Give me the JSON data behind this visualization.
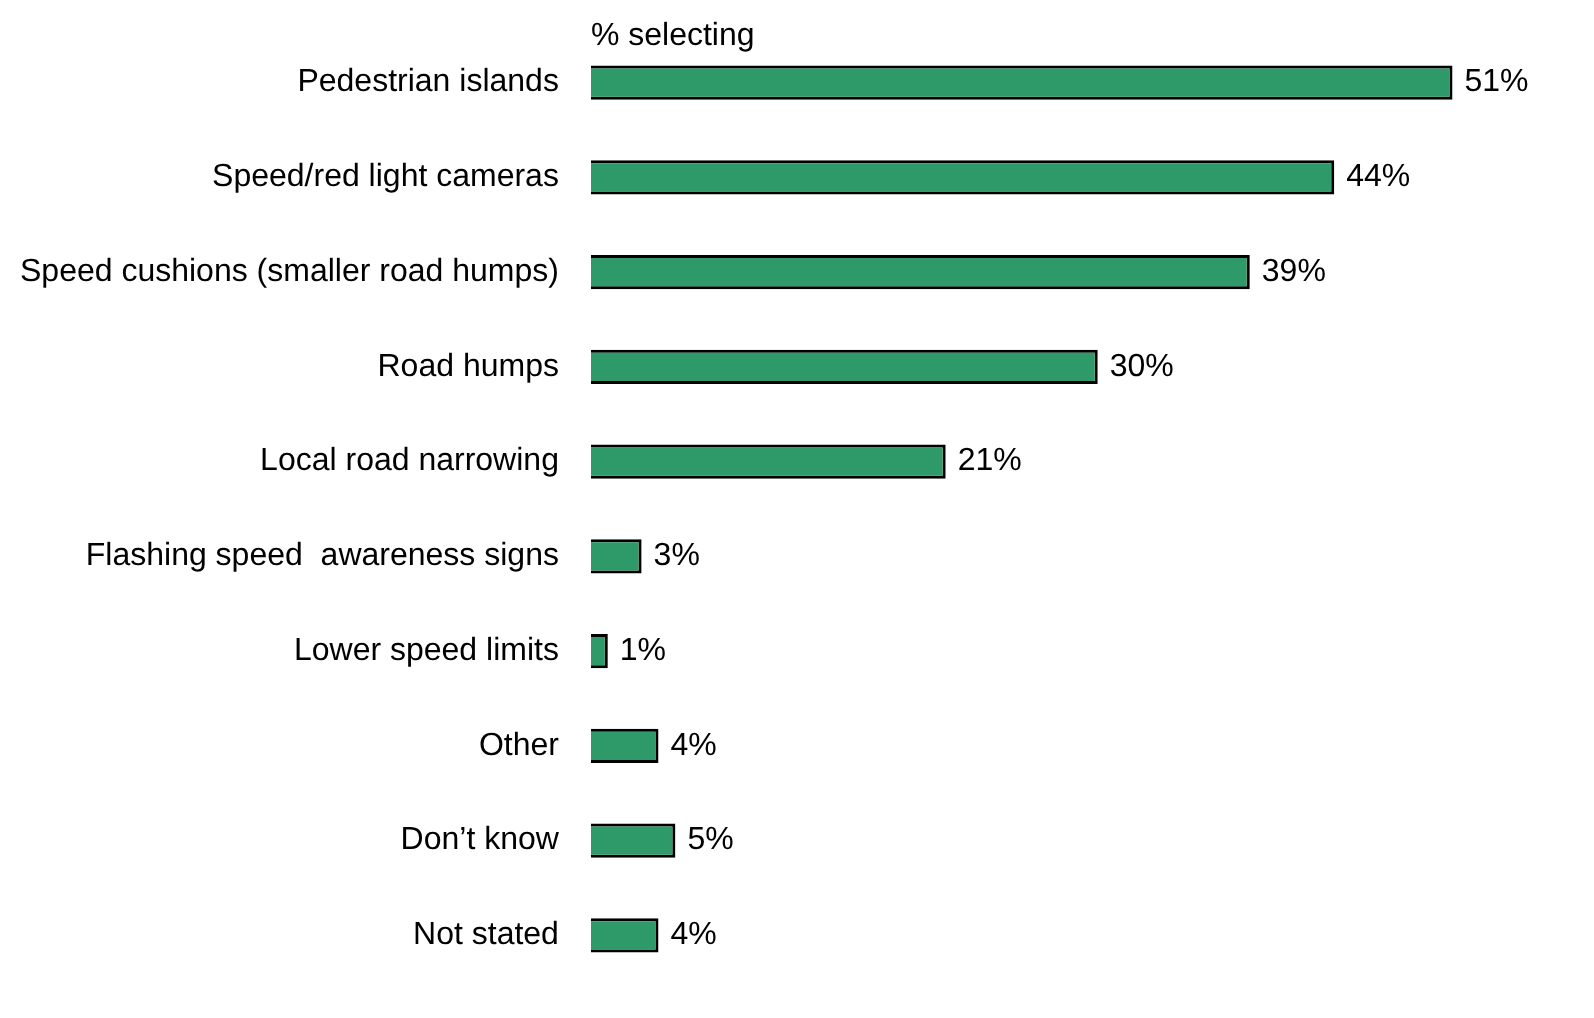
{
  "chart_data": {
    "type": "bar",
    "orientation": "horizontal",
    "xlabel": "% selecting",
    "categories": [
      "Pedestrian islands",
      "Speed/red light cameras",
      "Speed cushions (smaller road humps)",
      "Road humps",
      "Local road narrowing",
      "Flashing speed  awareness signs",
      "Lower speed limits",
      "Other",
      "Don’t know",
      "Not stated"
    ],
    "values": [
      51,
      44,
      39,
      30,
      21,
      3,
      1,
      4,
      5,
      4
    ],
    "value_labels": [
      "51%",
      "44%",
      "39%",
      "30%",
      "21%",
      "3%",
      "1%",
      "4%",
      "5%",
      "4%"
    ],
    "color": "#2e9a6a",
    "grid": false,
    "legend": false
  }
}
